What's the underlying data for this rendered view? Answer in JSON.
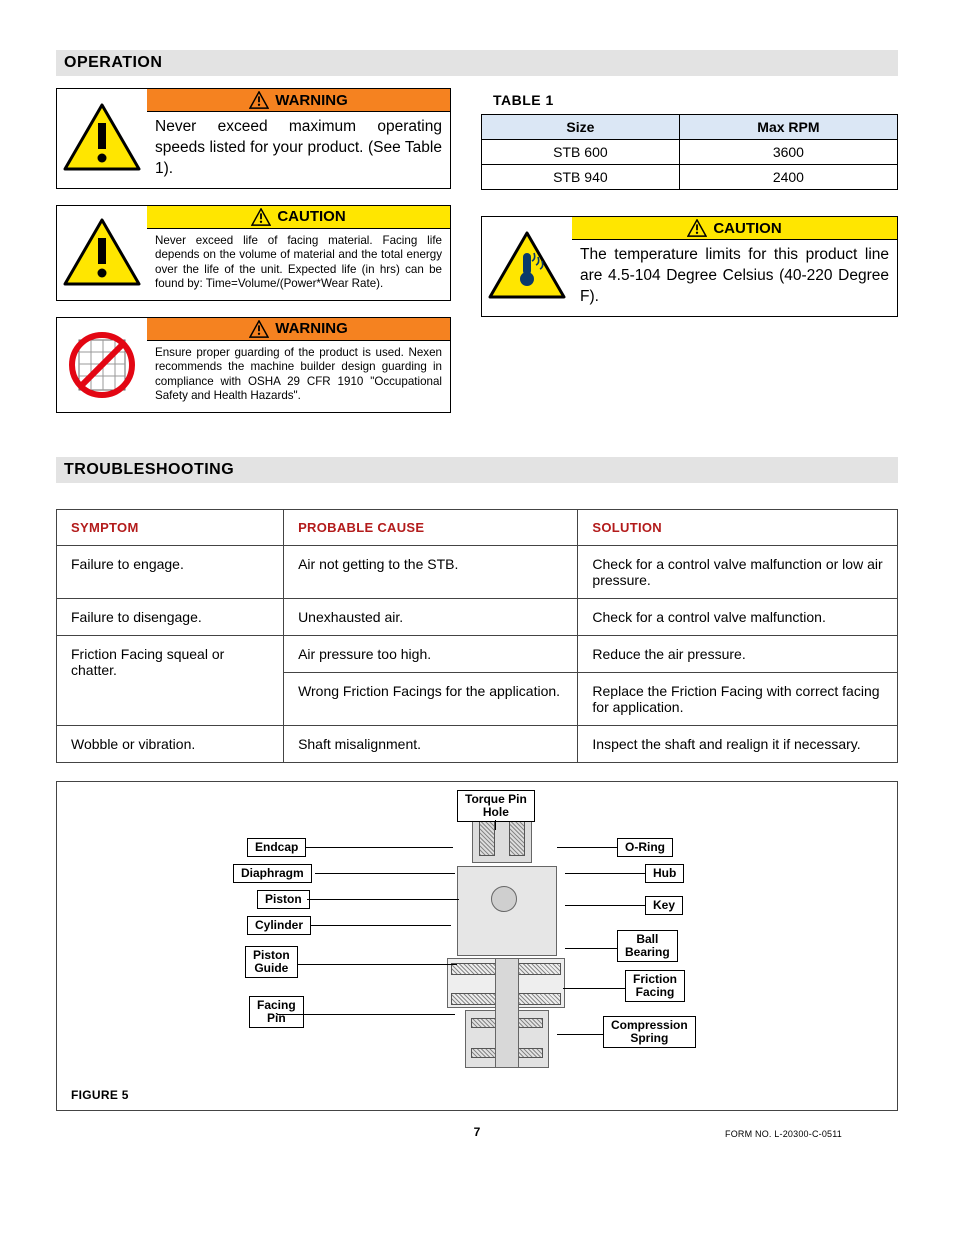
{
  "sections": {
    "operation": "OPERATION",
    "troubleshooting": "TROUBLESHOOTING"
  },
  "warning_boxes": {
    "speed": {
      "banner": "WARNING",
      "text": "Never exceed maximum operating speeds listed for your product. (See Table 1)."
    },
    "facing_life": {
      "banner": "CAUTION",
      "text": "Never exceed life of facing material. Facing life depends on the volume of material and the total energy over the life of the unit. Expected life (in hrs) can be found by: Time=Volume/(Power*Wear Rate)."
    },
    "guarding": {
      "banner": "WARNING",
      "text": "Ensure proper guarding of the product is used. Nexen recommends the machine builder design guarding in compliance with OSHA 29 CFR 1910 \"Occupational Safety and Health Hazards\"."
    },
    "temperature": {
      "banner": "CAUTION",
      "text": "The temperature limits for this product line are 4.5-104 Degree Celsius (40-220 Degree F)."
    }
  },
  "table1": {
    "caption": "TABLE 1",
    "headers": [
      "Size",
      "Max RPM"
    ],
    "rows": [
      [
        "STB 600",
        "3600"
      ],
      [
        "STB 940",
        "2400"
      ]
    ]
  },
  "troubleshooting": {
    "headers": [
      "SYMPTOM",
      "PROBABLE CAUSE",
      "SOLUTION"
    ],
    "rows": [
      {
        "symptom": "Failure to engage.",
        "cause": "Air not getting to the STB.",
        "solution": "Check for a control valve malfunction or low air pressure.",
        "rowspan": 1
      },
      {
        "symptom": "Failure to disengage.",
        "cause": "Unexhausted air.",
        "solution": "Check for a control valve malfunction.",
        "rowspan": 1
      },
      {
        "symptom": "Friction Facing squeal or chatter.",
        "cause": "Air pressure too high.",
        "solution": "Reduce the air pressure.",
        "rowspan": 2
      },
      {
        "cause": "Wrong Friction Facings for the application.",
        "solution": "Replace the Friction Facing with correct facing for application."
      },
      {
        "symptom": "Wobble or vibration.",
        "cause": "Shaft misalignment.",
        "solution": "Inspect the shaft and realign it if necessary.",
        "rowspan": 1
      }
    ]
  },
  "figure5": {
    "caption": "FIGURE 5",
    "labels_left": [
      "Endcap",
      "Diaphragm",
      "Piston",
      "Cylinder",
      "Piston Guide",
      "Facing Pin"
    ],
    "label_top": "Torque Pin Hole",
    "labels_right": [
      "O-Ring",
      "Hub",
      "Key",
      "Ball Bearing",
      "Friction Facing",
      "Compression Spring"
    ]
  },
  "footer": {
    "page": "7",
    "form": "FORM NO. L-20300-C-0511"
  },
  "colors": {
    "warning_bg": "#f58220",
    "caution_bg": "#ffe600",
    "section_bg": "#e3e3e3",
    "table_header_bg": "#dbe7f5",
    "trouble_header_color": "#b31b1b"
  }
}
